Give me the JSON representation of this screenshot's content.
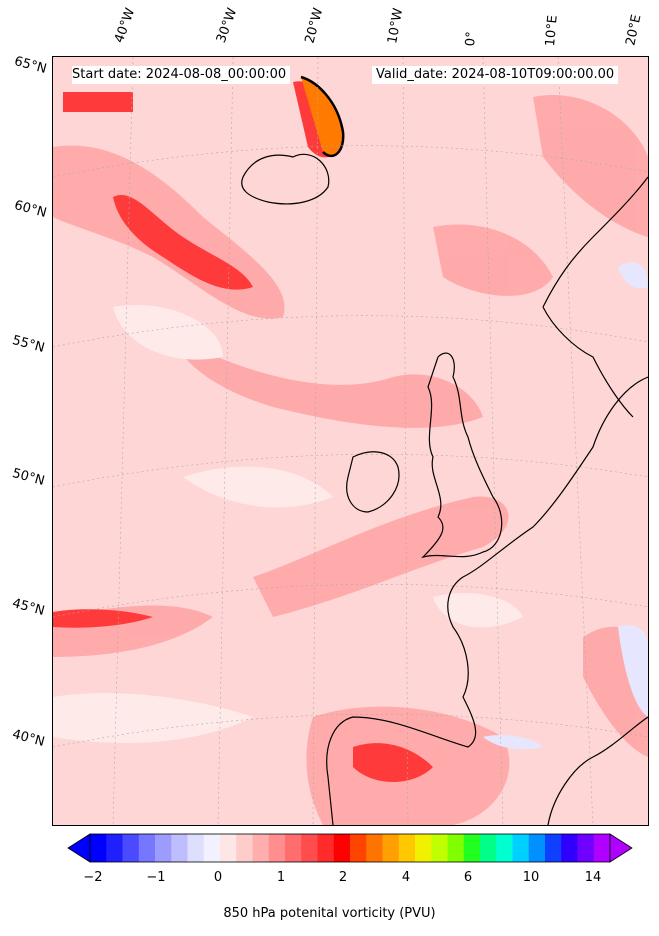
{
  "header": {
    "start_date": "Start date: 2024-08-08_00:00:00",
    "valid_date": "Valid_date: 2024-08-10T09:00:00.00"
  },
  "map": {
    "projection": "lambert-conformal",
    "region": "North Atlantic and Western Europe",
    "gridlines": true,
    "field": "850 hPa potential vorticity",
    "contour_level_highlighted": 2,
    "longitude_labels": [
      "40°W",
      "30°W",
      "20°W",
      "10°W",
      "0°",
      "10°E",
      "20°E"
    ],
    "latitude_labels": [
      "65°N",
      "60°N",
      "55°N",
      "50°N",
      "45°N",
      "40°N"
    ],
    "colors": {
      "background_fill": "#ffd6d6",
      "light_fill": "#ffe9e9",
      "medium_fill": "#ff9a9a",
      "strong_fill": "#ff3030",
      "peak_fill": "#ff7a00",
      "coast": "#000000"
    }
  },
  "colorbar": {
    "label": "850 hPa potenital vorticity (PVU)",
    "tick_labels": [
      "−2",
      "−1",
      "0",
      "1",
      "2",
      "4",
      "6",
      "10",
      "14"
    ],
    "colors": [
      "#0000ff",
      "#2020ff",
      "#4a4aff",
      "#7676ff",
      "#9c9cff",
      "#bdbdff",
      "#dedeff",
      "#f3f0ff",
      "#ffe6e6",
      "#ffcccc",
      "#ffaeae",
      "#ff8e8e",
      "#ff6e6e",
      "#ff4c4c",
      "#ff2a2a",
      "#ff0000",
      "#ff4400",
      "#ff7400",
      "#ff9f00",
      "#ffc800",
      "#f0f000",
      "#c0ff00",
      "#80ff00",
      "#20ff20",
      "#00ff88",
      "#00ffd0",
      "#00d0ff",
      "#0090ff",
      "#1040ff",
      "#3000ff",
      "#7000ff",
      "#b000ff"
    ],
    "extend": "both"
  }
}
